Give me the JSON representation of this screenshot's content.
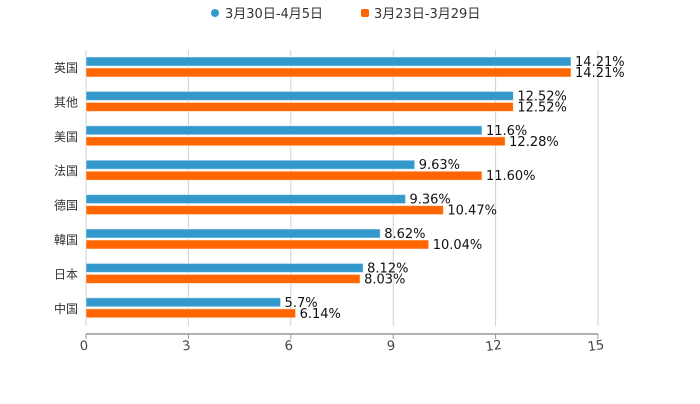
{
  "chart_data": {
    "type": "bar",
    "orientation": "horizontal",
    "title": "",
    "categories": [
      "英国",
      "其他",
      "美国",
      "法国",
      "德国",
      "韓国",
      "日本",
      "中国"
    ],
    "series": [
      {
        "name": "3月30日-4月5日",
        "color": "#3399cc",
        "values": [
          14.21,
          12.52,
          11.6,
          9.63,
          9.36,
          8.62,
          8.12,
          5.7
        ],
        "labels": [
          "14.21%",
          "12.52%",
          "11.6%",
          "9.63%",
          "9.36%",
          "8.62%",
          "8.12%",
          "5.7%"
        ]
      },
      {
        "name": "3月23日-3月29日",
        "color": "#ff6600",
        "values": [
          14.21,
          12.52,
          12.28,
          11.6,
          10.47,
          10.04,
          8.03,
          6.14
        ],
        "labels": [
          "14.21%",
          "12.52%",
          "12.28%",
          "11.60%",
          "10.47%",
          "10.04%",
          "8.03%",
          "6.14%"
        ]
      }
    ],
    "xlim": [
      0,
      15
    ],
    "xticks": [
      "0",
      "3",
      "6",
      "9",
      "12",
      "15"
    ],
    "grid": true,
    "legend_position": "top-center"
  }
}
